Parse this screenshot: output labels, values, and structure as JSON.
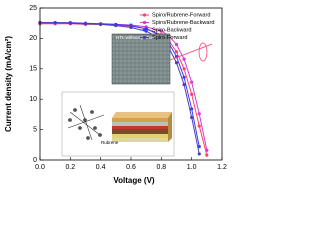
{
  "chart_data": {
    "type": "line",
    "x_label": "Voltage (V)",
    "y_label": "Current density (mA/cm²)",
    "x": [
      0,
      0.1,
      0.2,
      0.3,
      0.4,
      0.5,
      0.6,
      0.7,
      0.8,
      0.85,
      0.9,
      0.95,
      1.0,
      1.05,
      1.1
    ],
    "series": [
      {
        "name": "Spiro/Rubrene-Forward",
        "color": "#ff3d6e",
        "values": [
          22.4,
          22.4,
          22.4,
          22.3,
          22.3,
          22.2,
          22.0,
          21.6,
          20.6,
          19.6,
          17.8,
          15.0,
          10.8,
          5.6,
          0.8
        ]
      },
      {
        "name": "Spiro/Rubrene-Backward",
        "color": "#d43bd0",
        "values": [
          22.5,
          22.5,
          22.5,
          22.4,
          22.4,
          22.3,
          22.2,
          21.9,
          21.2,
          20.4,
          19.0,
          16.6,
          12.8,
          7.6,
          1.6
        ]
      },
      {
        "name": "Spiro-Backward",
        "color": "#3a3aff",
        "values": [
          22.6,
          22.6,
          22.6,
          22.5,
          22.4,
          22.3,
          22.1,
          21.6,
          20.4,
          19.2,
          17.0,
          13.6,
          8.4,
          2.2,
          null
        ]
      },
      {
        "name": "Spiro-Forward",
        "color": "#4a3fb8",
        "values": [
          22.6,
          22.6,
          22.5,
          22.4,
          22.3,
          22.1,
          21.8,
          21.2,
          19.8,
          18.4,
          16.0,
          12.4,
          7.0,
          1.0,
          null
        ]
      }
    ],
    "xlim": [
      0,
      1.2
    ],
    "ylim": [
      0,
      25
    ],
    "xticks": [
      {
        "value": 0,
        "label": "0.0"
      },
      0.2,
      0.4,
      0.6,
      0.8,
      {
        "value": 1,
        "label": "1.0"
      },
      1.2
    ],
    "yticks": [
      0,
      5,
      10,
      15,
      20,
      25
    ],
    "legend": "upper right",
    "annotations": [
      "HTL without pinhole",
      "Rubrene"
    ]
  }
}
